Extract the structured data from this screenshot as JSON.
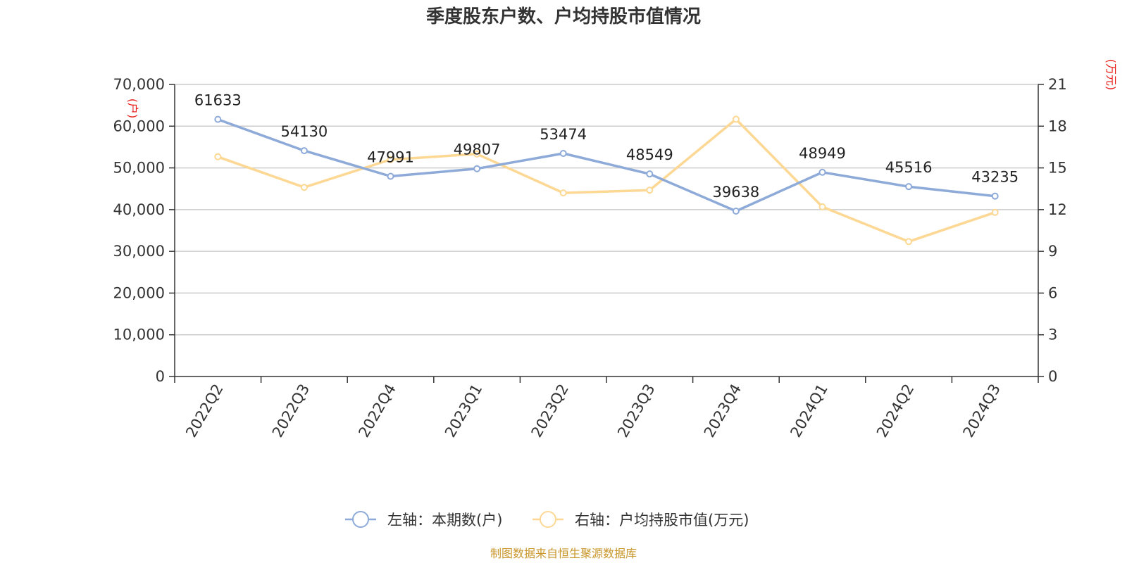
{
  "chart_data": {
    "type": "line",
    "title": "季度股东户数、户均持股市值情况",
    "categories": [
      "2022Q2",
      "2022Q3",
      "2022Q4",
      "2023Q1",
      "2023Q2",
      "2023Q3",
      "2023Q4",
      "2024Q1",
      "2024Q2",
      "2024Q3"
    ],
    "left_axis": {
      "unit": "(户)",
      "ylim": [
        0,
        70000
      ],
      "ticks": [
        "0",
        "10,000",
        "20,000",
        "30,000",
        "40,000",
        "50,000",
        "60,000",
        "70,000"
      ]
    },
    "right_axis": {
      "unit": "(万元)",
      "ylim": [
        0,
        21
      ],
      "ticks": [
        "0",
        "3",
        "6",
        "9",
        "12",
        "15",
        "18",
        "21"
      ]
    },
    "series": [
      {
        "name": "左轴：本期数(户)",
        "axis": "left",
        "color": "#8eaad8",
        "values": [
          61633,
          54130,
          47991,
          49807,
          53474,
          48549,
          39638,
          48949,
          45516,
          43235
        ],
        "labels": [
          "61633",
          "54130",
          "47991",
          "49807",
          "53474",
          "48549",
          "39638",
          "48949",
          "45516",
          "43235"
        ]
      },
      {
        "name": "右轴：户均持股市值(万元)",
        "axis": "right",
        "color": "#fcd894",
        "values": [
          15.8,
          13.6,
          15.6,
          16.0,
          13.2,
          13.4,
          18.5,
          12.2,
          9.7,
          11.8
        ]
      }
    ],
    "grid": true,
    "legend_position": "bottom-center"
  },
  "footer": {
    "source": "制图数据来自恒生聚源数据库"
  }
}
